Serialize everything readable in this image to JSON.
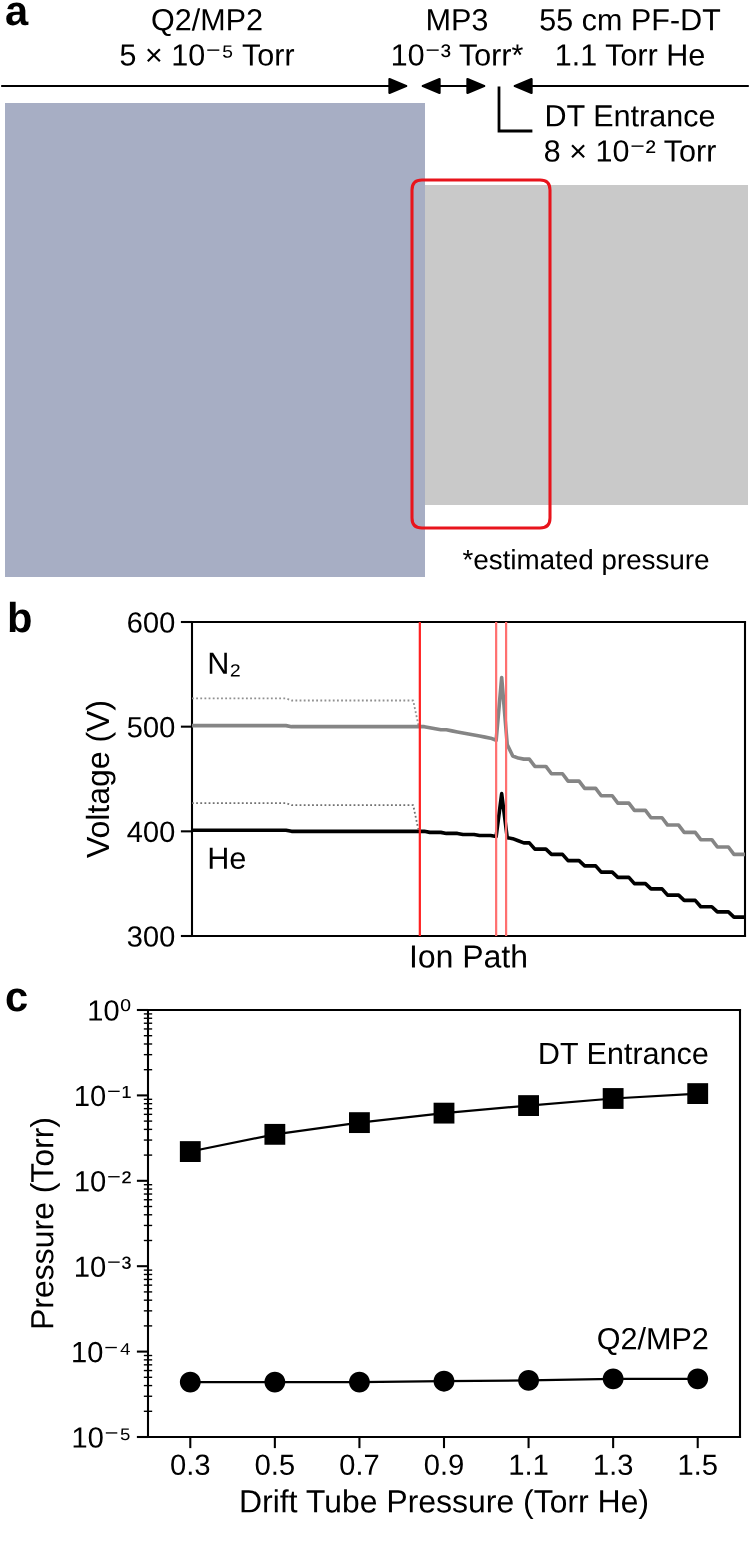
{
  "chart_data": [
    {
      "type": "other",
      "title": "a",
      "annotations": [
        "Q2/MP2\n5 × 10⁻⁵ Torr",
        "MP3\n10⁻³ Torr*",
        "55 cm PF-DT\n1.1 Torr He",
        "DT Entrance\n8 × 10⁻² Torr",
        "*estimated pressure"
      ]
    },
    {
      "type": "line",
      "title": "b",
      "xlabel": "Ion Path",
      "ylabel": "Voltage (V)",
      "categories": [
        null,
        null,
        null,
        null,
        null,
        null,
        null,
        null,
        null,
        null,
        null,
        null,
        null,
        null,
        null,
        null,
        null,
        null,
        null,
        null,
        null,
        null,
        null,
        null,
        null,
        null,
        null,
        null,
        null,
        null,
        null,
        null,
        null,
        null,
        null,
        null,
        null,
        null,
        null,
        null,
        null,
        null,
        null,
        null,
        null,
        null,
        null,
        null,
        null,
        null,
        null,
        null,
        null,
        null,
        null,
        null,
        null,
        null,
        null,
        null,
        null,
        null,
        null,
        null,
        null,
        null,
        null,
        null,
        null,
        null,
        null,
        null,
        null,
        null,
        null,
        null,
        null,
        null,
        null,
        null,
        null,
        null,
        null,
        null,
        null,
        null,
        null,
        null,
        null,
        null,
        null,
        null,
        null,
        null,
        null,
        null,
        null,
        null,
        null,
        null,
        null
      ],
      "series": [
        {
          "name": "N₂",
          "color": "#858585",
          "values": [
            501,
            501,
            501,
            501,
            501,
            501,
            501,
            501,
            501,
            501,
            501,
            501,
            501,
            501,
            501,
            501,
            501,
            501,
            500,
            500,
            500,
            500,
            500,
            500,
            500,
            500,
            500,
            500,
            500,
            500,
            500,
            500,
            500,
            500,
            500,
            500,
            500,
            500,
            500,
            500,
            500,
            500,
            500,
            499,
            498,
            497,
            497,
            496,
            495,
            494,
            493,
            492,
            491,
            490,
            489,
            487,
            547,
            483,
            472,
            470,
            469,
            469,
            462,
            462,
            462,
            455,
            455,
            455,
            448,
            448,
            448,
            441,
            441,
            441,
            434,
            434,
            434,
            427,
            427,
            427,
            420,
            420,
            420,
            413,
            413,
            413,
            406,
            406,
            406,
            399,
            399,
            399,
            392,
            392,
            392,
            385,
            385,
            385,
            378,
            378,
            378
          ]
        },
        {
          "name": "He",
          "color": "#000000",
          "values": [
            401,
            401,
            401,
            401,
            401,
            401,
            401,
            401,
            401,
            401,
            401,
            401,
            401,
            401,
            401,
            401,
            401,
            401,
            400,
            400,
            400,
            400,
            400,
            400,
            400,
            400,
            400,
            400,
            400,
            400,
            400,
            400,
            400,
            400,
            400,
            400,
            400,
            400,
            400,
            400,
            400,
            400,
            400,
            399,
            399,
            399,
            398,
            398,
            398,
            397,
            397,
            397,
            396,
            396,
            396,
            395,
            436,
            394,
            393,
            391,
            389,
            389,
            383,
            383,
            383,
            378,
            378,
            378,
            372,
            372,
            372,
            367,
            367,
            367,
            361,
            361,
            361,
            356,
            356,
            356,
            350,
            350,
            350,
            345,
            345,
            345,
            339,
            339,
            339,
            334,
            334,
            334,
            328,
            328,
            328,
            323,
            323,
            323,
            318,
            318,
            318
          ]
        },
        {
          "color": "#909090",
          "line_style": "dotted",
          "values": [
            527,
            527,
            527,
            527,
            527,
            527,
            527,
            527,
            527,
            527,
            527,
            527,
            527,
            527,
            527,
            527,
            527,
            527,
            525,
            525,
            525,
            525,
            525,
            525,
            525,
            525,
            525,
            525,
            525,
            525,
            525,
            525,
            525,
            525,
            525,
            525,
            525,
            525,
            525,
            525,
            525,
            500,
            null,
            null,
            null,
            null,
            null,
            null,
            null,
            null,
            null,
            null,
            null,
            null,
            null,
            null,
            null,
            null,
            null,
            null,
            null,
            null,
            null,
            null,
            null,
            null,
            null,
            null,
            null,
            null,
            null,
            null,
            null,
            null,
            null,
            null,
            null,
            null,
            null,
            null,
            null,
            null,
            null,
            null,
            null,
            null,
            null,
            null,
            null,
            null,
            null,
            null,
            null,
            null,
            null,
            null,
            null,
            null,
            null,
            null,
            null
          ]
        },
        {
          "color": "#707070",
          "line_style": "dotted",
          "values": [
            427,
            427,
            427,
            427,
            427,
            427,
            427,
            427,
            427,
            427,
            427,
            427,
            427,
            427,
            427,
            427,
            427,
            427,
            425,
            425,
            425,
            425,
            425,
            425,
            425,
            425,
            425,
            425,
            425,
            425,
            425,
            425,
            425,
            425,
            425,
            425,
            425,
            425,
            425,
            425,
            425,
            400,
            null,
            null,
            null,
            null,
            null,
            null,
            null,
            null,
            null,
            null,
            null,
            null,
            null,
            null,
            null,
            null,
            null,
            null,
            null,
            null,
            null,
            null,
            null,
            null,
            null,
            null,
            null,
            null,
            null,
            null,
            null,
            null,
            null,
            null,
            null,
            null,
            null,
            null,
            null,
            null,
            null,
            null,
            null,
            null,
            null,
            null,
            null,
            null,
            null,
            null,
            null,
            null,
            null,
            null,
            null,
            null,
            null,
            null,
            null
          ]
        }
      ],
      "ylim": [
        300,
        600
      ],
      "yticks": [
        300,
        400,
        500,
        600
      ]
    },
    {
      "type": "line",
      "title": "c",
      "xlabel": "Drift Tube Pressure (Torr He)",
      "ylabel": "Pressure (Torr)",
      "x": [
        0.3,
        0.5,
        0.7,
        0.9,
        1.1,
        1.3,
        1.5
      ],
      "series": [
        {
          "name": "DT Entrance",
          "color": "#000000",
          "marker": "square",
          "values": [
            0.022,
            0.035,
            0.048,
            0.062,
            0.076,
            0.092,
            0.105
          ]
        },
        {
          "name": "Q2/MP2",
          "color": "#000000",
          "marker": "circle",
          "values": [
            4.4e-05,
            4.4e-05,
            4.4e-05,
            4.5e-05,
            4.6e-05,
            4.8e-05,
            4.8e-05
          ]
        }
      ],
      "log": "y",
      "xlim": [
        0.2,
        1.6
      ],
      "xticks": [
        0.3,
        0.5,
        0.7,
        0.9,
        1.1,
        1.3,
        1.5
      ],
      "ylim": [
        1e-05,
        1
      ],
      "yticks": [
        {
          "value": 1e-05,
          "label": "10⁻⁵"
        },
        {
          "value": 0.0001,
          "label": "10⁻⁴"
        },
        {
          "value": 0.001,
          "label": "10⁻³"
        },
        {
          "value": 0.01,
          "label": "10⁻²"
        },
        {
          "value": 0.1,
          "label": "10⁻¹"
        },
        {
          "value": 1,
          "label": "10⁰"
        }
      ]
    }
  ]
}
